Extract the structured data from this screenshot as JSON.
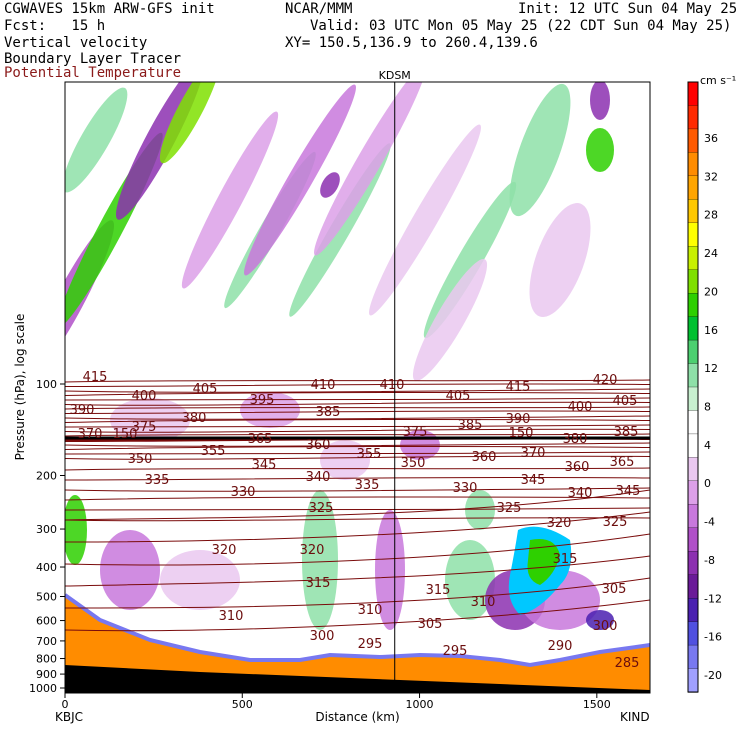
{
  "header": {
    "model": "CGWAVES 15km ARW-GFS init",
    "org": "NCAR/MMM",
    "init": "Init: 12 UTC Sun 04 May 25",
    "fcst": "Fcst:   15 h",
    "valid": "Valid: 03 UTC Mon 05 May 25 (22 CDT Sun 04 May 25)",
    "field1": "Vertical velocity",
    "xy": "XY= 150.5,136.9 to 260.4,139.6",
    "field2": "Boundary Layer Tracer",
    "field3": "Potential Temperature"
  },
  "chart_data": {
    "type": "heatmap",
    "title": "",
    "xlabel": "Distance (km)",
    "ylabel": "Pressure (hPa), log scale",
    "xlim": [
      0,
      1650
    ],
    "x_ticks": [
      0,
      500,
      1000,
      1500
    ],
    "y_ticks": [
      100,
      200,
      300,
      400,
      500,
      600,
      700,
      800,
      900,
      1000
    ],
    "y_scale": "log",
    "x_end_labels": {
      "left": "KBJC",
      "right": "KIND"
    },
    "marker_label": "KDSM",
    "marker_x": 930,
    "colorbar": {
      "unit": "cm s⁻¹",
      "labels": [
        36,
        32,
        28,
        24,
        20,
        16,
        12,
        8,
        4,
        0,
        -4,
        -8,
        -12,
        -16,
        -20
      ],
      "colors": [
        "#ff0000",
        "#ff2a00",
        "#ff5a00",
        "#ff8c00",
        "#ffa500",
        "#ffc800",
        "#ffff00",
        "#c8f000",
        "#7fe000",
        "#2ed000",
        "#00c030",
        "#4cd070",
        "#8ee0a8",
        "#c8f0d0",
        "#ffffff",
        "#ffffff",
        "#eac8f0",
        "#dca0e8",
        "#c878dc",
        "#b050c8",
        "#8c30b0",
        "#6a1a98",
        "#4a20b0",
        "#5050e0",
        "#7878f0",
        "#a0a0ff"
      ]
    },
    "contour_labels": [
      "415",
      "405",
      "410",
      "410",
      "415",
      "420",
      "390",
      "400",
      "395",
      "385",
      "405",
      "390",
      "400",
      "405",
      "375",
      "380",
      "370",
      "150",
      "365",
      "360",
      "375",
      "385",
      "150",
      "380",
      "385",
      "350",
      "355",
      "345",
      "355",
      "350",
      "360",
      "370",
      "360",
      "365",
      "335",
      "340",
      "335",
      "330",
      "345",
      "340",
      "345",
      "330",
      "325",
      "325",
      "320",
      "325",
      "320",
      "320",
      "315",
      "315",
      "315",
      "310",
      "305",
      "310",
      "310",
      "305",
      "300",
      "300",
      "295",
      "295",
      "290",
      "285"
    ]
  }
}
